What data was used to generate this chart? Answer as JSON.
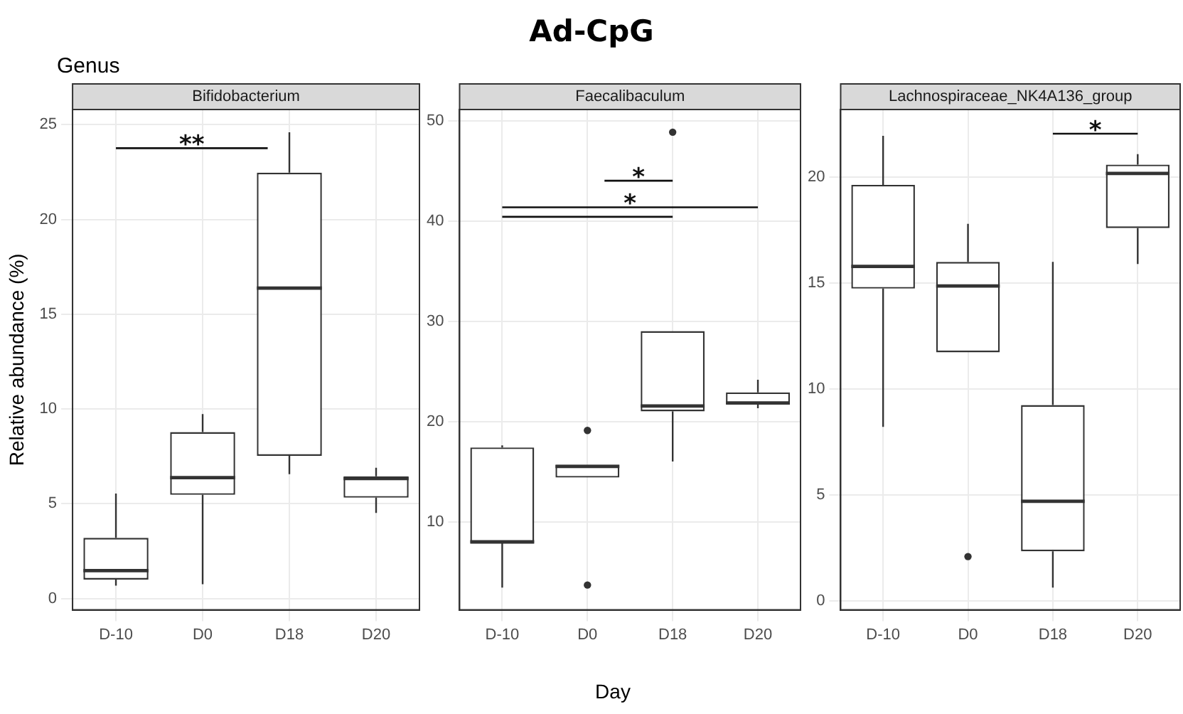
{
  "chart_data": [
    {
      "type": "box",
      "subtitle": "Bifidobacterium",
      "ylabel": "Relative abundance (%)",
      "categories": [
        "D-10",
        "D0",
        "D18",
        "D20"
      ],
      "boxes": [
        {
          "low": 0.68,
          "q1": 1.0,
          "median": 1.47,
          "q3": 3.2,
          "high": 5.54
        },
        {
          "low": 0.75,
          "q1": 5.47,
          "median": 6.38,
          "q3": 8.78,
          "high": 9.73
        },
        {
          "low": 6.56,
          "q1": 7.53,
          "median": 16.38,
          "q3": 22.47,
          "high": 24.6
        },
        {
          "low": 4.52,
          "q1": 5.32,
          "median": 6.33,
          "q3": 6.45,
          "high": 6.9
        }
      ],
      "ylim": [
        -0.6,
        25.8
      ],
      "yticks": [
        0,
        5,
        10,
        15,
        20,
        25
      ],
      "grid": true,
      "annotations": [
        "Genus",
        "**"
      ]
    },
    {
      "type": "box",
      "title": "Ad-CpG",
      "subtitle": "Faecalibaculum",
      "xlabel": "Day",
      "categories": [
        "D-10",
        "D0",
        "D18",
        "D20"
      ],
      "boxes": [
        {
          "low": 3.43,
          "q1": 7.85,
          "median": 7.98,
          "q3": 17.4,
          "high": 17.6
        },
        {
          "low": 14.39,
          "q1": 14.39,
          "median": 15.5,
          "q3": 15.68,
          "high": 15.68,
          "outliers": [
            19.1,
            3.68
          ]
        },
        {
          "low": 16.0,
          "q1": 21.0,
          "median": 21.53,
          "q3": 29.0,
          "high": 29.0,
          "outliers": [
            48.84
          ]
        },
        {
          "low": 21.31,
          "q1": 21.74,
          "median": 21.83,
          "q3": 22.9,
          "high": 24.15
        }
      ],
      "ylim": [
        1.2,
        51.1
      ],
      "yticks": [
        10,
        20,
        30,
        40,
        50
      ],
      "grid": true,
      "annotations": [
        "*",
        "*"
      ]
    },
    {
      "type": "box",
      "subtitle": "Lachnospiraceae_NK4A136_group",
      "categories": [
        "D-10",
        "D0",
        "D18",
        "D20"
      ],
      "boxes": [
        {
          "low": 8.21,
          "q1": 14.74,
          "median": 15.79,
          "q3": 19.64,
          "high": 21.96
        },
        {
          "low": 11.73,
          "q1": 11.73,
          "median": 14.86,
          "q3": 16.0,
          "high": 17.8,
          "outliers": [
            2.08
          ]
        },
        {
          "low": 0.61,
          "q1": 2.33,
          "median": 4.69,
          "q3": 9.24,
          "high": 16.0
        },
        {
          "low": 15.9,
          "q1": 17.6,
          "median": 20.18,
          "q3": 20.6,
          "high": 21.09
        }
      ],
      "ylim": [
        -0.44,
        23.2
      ],
      "yticks": [
        0,
        5,
        10,
        15,
        20
      ],
      "grid": true,
      "annotations": [
        "*"
      ]
    }
  ]
}
